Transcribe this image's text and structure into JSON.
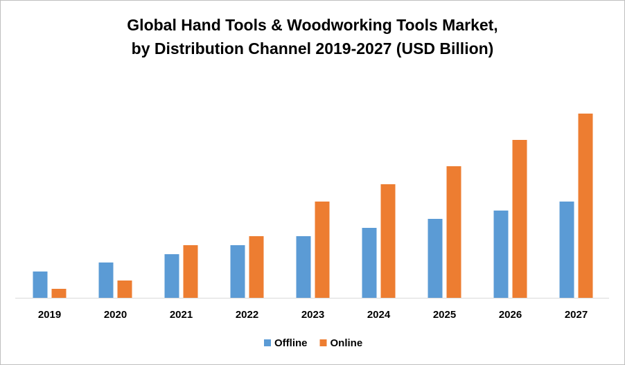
{
  "chart_data": {
    "type": "bar",
    "title": [
      "Global Hand Tools & Woodworking Tools Market,",
      "by Distribution Channel 2019-2027 (USD Billion)"
    ],
    "categories": [
      "2019",
      "2020",
      "2021",
      "2022",
      "2023",
      "2024",
      "2025",
      "2026",
      "2027"
    ],
    "series": [
      {
        "name": "Offline",
        "color": "#5b9bd5",
        "values": [
          38,
          51,
          63,
          76,
          89,
          101,
          114,
          126,
          139
        ]
      },
      {
        "name": "Online",
        "color": "#ed7d31",
        "values": [
          13,
          25,
          76,
          89,
          139,
          164,
          190,
          228,
          266
        ]
      }
    ],
    "ylim": [
      0,
      280
    ],
    "legend": "bottom"
  }
}
